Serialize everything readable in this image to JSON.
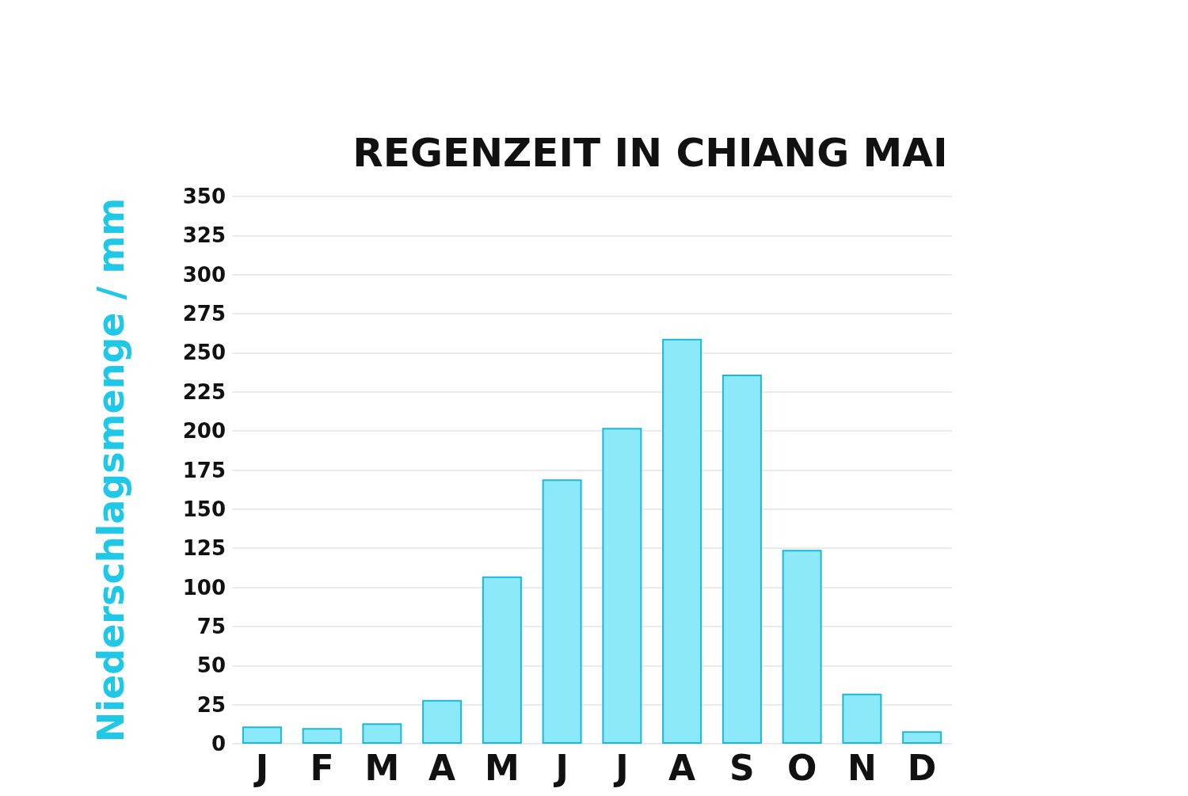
{
  "chart_data": {
    "type": "bar",
    "title": "REGENZEIT IN CHIANG MAI",
    "ylabel": "Niederschlagsmenge / mm",
    "categories": [
      "J",
      "F",
      "M",
      "A",
      "M",
      "J",
      "J",
      "A",
      "S",
      "O",
      "N",
      "D"
    ],
    "values": [
      11,
      10,
      13,
      28,
      107,
      169,
      202,
      259,
      236,
      124,
      32,
      8
    ],
    "color": "#8ce9f9",
    "ylim": [
      0,
      350
    ],
    "yticks": [
      0,
      25,
      50,
      75,
      100,
      125,
      150,
      175,
      200,
      225,
      250,
      275,
      300,
      325,
      350
    ],
    "grid": "y"
  }
}
